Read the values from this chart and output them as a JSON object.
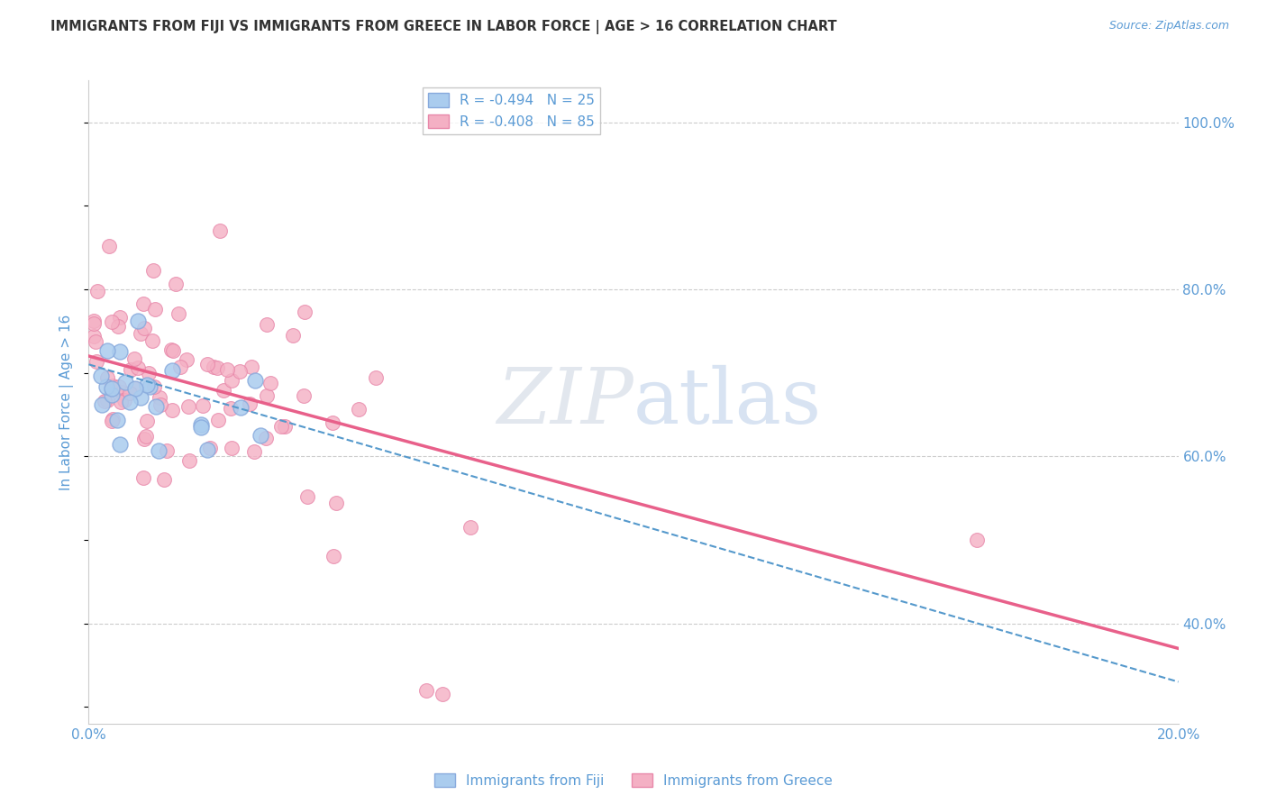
{
  "title": "IMMIGRANTS FROM FIJI VS IMMIGRANTS FROM GREECE IN LABOR FORCE | AGE > 16 CORRELATION CHART",
  "source_text": "Source: ZipAtlas.com",
  "ylabel": "In Labor Force | Age > 16",
  "xlim": [
    0.0,
    0.2
  ],
  "ylim": [
    0.28,
    1.05
  ],
  "xtick_positions": [
    0.0,
    0.05,
    0.1,
    0.15,
    0.2
  ],
  "xticklabels": [
    "0.0%",
    "",
    "",
    "",
    "20.0%"
  ],
  "ytick_right_positions": [
    0.4,
    0.6,
    0.8,
    1.0
  ],
  "yticklabels_right": [
    "40.0%",
    "60.0%",
    "80.0%",
    "100.0%"
  ],
  "watermark": "ZIPatlas",
  "background_color": "#ffffff",
  "grid_color": "#cccccc",
  "fiji_color": "#aaccee",
  "fiji_edge_color": "#88aadd",
  "fiji_line_color": "#5599cc",
  "fiji_R": -0.494,
  "fiji_N": 25,
  "fiji_intercept": 0.71,
  "fiji_slope": -1.9,
  "greece_color": "#f4b0c4",
  "greece_edge_color": "#e888aa",
  "greece_line_color": "#e8608a",
  "greece_R": -0.408,
  "greece_N": 85,
  "greece_intercept": 0.72,
  "greece_slope": -1.75,
  "legend_fiji_label": "R = -0.494   N = 25",
  "legend_greece_label": "R = -0.408   N = 85",
  "bottom_legend_fiji": "Immigrants from Fiji",
  "bottom_legend_greece": "Immigrants from Greece",
  "title_color": "#333333",
  "tick_color": "#5b9bd5"
}
